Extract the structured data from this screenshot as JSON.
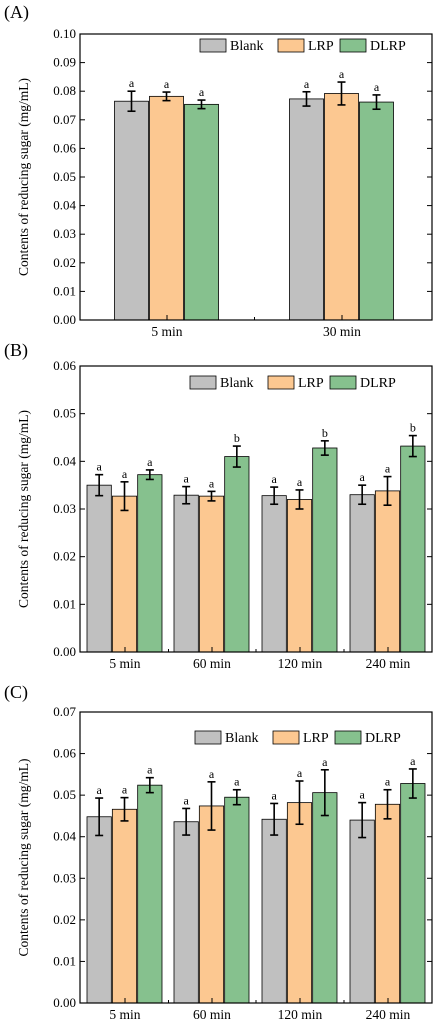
{
  "colors": {
    "Blank": "#c0c0c0",
    "LRP": "#fcc891",
    "DLRP": "#86c18e"
  },
  "chart_data": [
    {
      "type": "bar",
      "panel_label": "(A)",
      "ylabel": "Contents of reducing sugar (mg/mL)",
      "ylim": [
        0,
        0.1
      ],
      "yticks": [
        "0.00",
        "0.01",
        "0.02",
        "0.03",
        "0.04",
        "0.05",
        "0.06",
        "0.07",
        "0.08",
        "0.09",
        "0.10"
      ],
      "legend": [
        "Blank",
        "LRP",
        "DLRP"
      ],
      "legend_position": "top-right",
      "categories": [
        "5 min",
        "30 min"
      ],
      "series": [
        {
          "name": "Blank",
          "values": [
            0.0765,
            0.0773
          ],
          "errors": [
            0.0035,
            0.0025
          ],
          "labels": [
            "a",
            "a"
          ]
        },
        {
          "name": "LRP",
          "values": [
            0.0782,
            0.0792
          ],
          "errors": [
            0.0015,
            0.004
          ],
          "labels": [
            "a",
            "a"
          ]
        },
        {
          "name": "DLRP",
          "values": [
            0.0754,
            0.0762
          ],
          "errors": [
            0.0015,
            0.0025
          ],
          "labels": [
            "a",
            "a"
          ]
        }
      ]
    },
    {
      "type": "bar",
      "panel_label": "(B)",
      "ylabel": "Contents of reducing sugar (mg/mL)",
      "ylim": [
        0,
        0.06
      ],
      "yticks": [
        "0.00",
        "0.01",
        "0.02",
        "0.03",
        "0.04",
        "0.05",
        "0.06"
      ],
      "legend": [
        "Blank",
        "LRP",
        "DLRP"
      ],
      "legend_position": "top-right",
      "categories": [
        "5 min",
        "60 min",
        "120 min",
        "240 min"
      ],
      "series": [
        {
          "name": "Blank",
          "values": [
            0.035,
            0.0329,
            0.0328,
            0.033
          ],
          "errors": [
            0.0022,
            0.0018,
            0.0018,
            0.002
          ],
          "labels": [
            "a",
            "a",
            "a",
            "a"
          ]
        },
        {
          "name": "LRP",
          "values": [
            0.0327,
            0.0327,
            0.032,
            0.0338
          ],
          "errors": [
            0.003,
            0.001,
            0.002,
            0.003
          ],
          "labels": [
            "a",
            "a",
            "a",
            "a"
          ]
        },
        {
          "name": "DLRP",
          "values": [
            0.0372,
            0.041,
            0.0428,
            0.0432
          ],
          "errors": [
            0.001,
            0.0022,
            0.0015,
            0.0022
          ],
          "labels": [
            "a",
            "b",
            "b",
            "b"
          ]
        }
      ]
    },
    {
      "type": "bar",
      "panel_label": "(C)",
      "ylabel": "Contents of reducing sugar (mg/mL)",
      "ylim": [
        0,
        0.07
      ],
      "yticks": [
        "0.00",
        "0.01",
        "0.02",
        "0.03",
        "0.04",
        "0.05",
        "0.06",
        "0.07"
      ],
      "legend": [
        "Blank",
        "LRP",
        "DLRP"
      ],
      "legend_position": "top-right",
      "categories": [
        "5 min",
        "60 min",
        "120 min",
        "240 min"
      ],
      "series": [
        {
          "name": "Blank",
          "values": [
            0.0448,
            0.0436,
            0.0442,
            0.044
          ],
          "errors": [
            0.0045,
            0.0032,
            0.0038,
            0.0042
          ],
          "labels": [
            "a",
            "a",
            "a",
            "a"
          ]
        },
        {
          "name": "LRP",
          "values": [
            0.0466,
            0.0474,
            0.0482,
            0.0478
          ],
          "errors": [
            0.0028,
            0.0058,
            0.0052,
            0.0035
          ],
          "labels": [
            "a",
            "a",
            "a",
            "a"
          ]
        },
        {
          "name": "DLRP",
          "values": [
            0.0524,
            0.0495,
            0.0506,
            0.0528
          ],
          "errors": [
            0.0018,
            0.0018,
            0.0055,
            0.0035
          ],
          "labels": [
            "a",
            "a",
            "a",
            "a"
          ]
        }
      ]
    }
  ]
}
